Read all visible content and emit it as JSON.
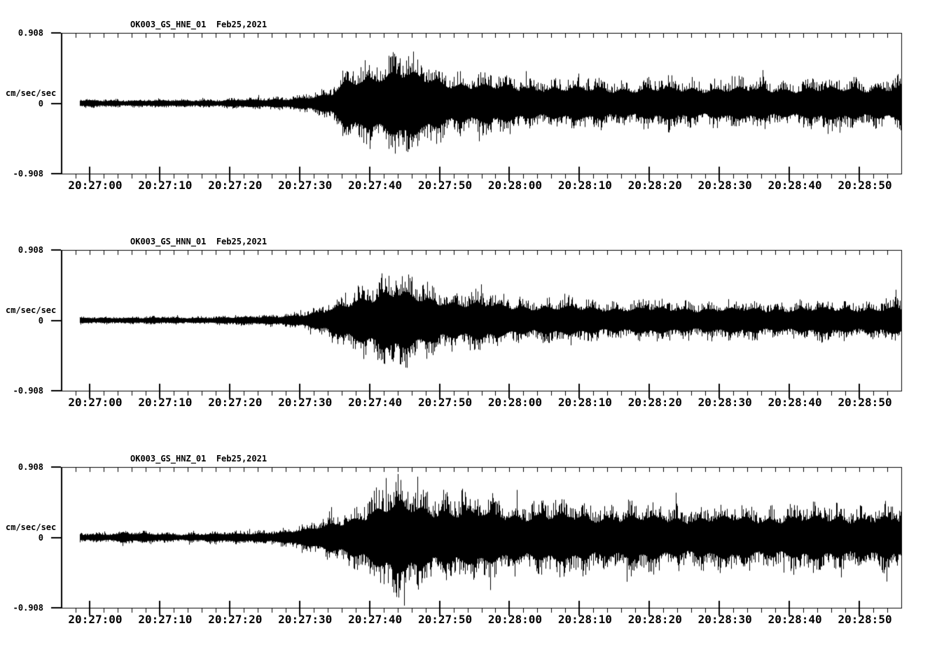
{
  "page": {
    "background": "#ffffff",
    "foreground": "#000000",
    "description": "Three-component strong-motion accelerograms, station OK003, network GS, Feb 25 2021 earthquake record"
  },
  "chart_data": {
    "type": "line",
    "subtype": "seismogram",
    "station": "OK003",
    "network": "GS",
    "date": "Feb25,2021",
    "ylabel": "cm/sec/sec",
    "ylim": [
      -0.908,
      0.908
    ],
    "y_tick_labels": [
      "0.908",
      "0",
      "-0.908"
    ],
    "y_tick_values": [
      0.908,
      0,
      -0.908
    ],
    "x_axis_start_time": "20:26:56",
    "x_span_seconds": 120,
    "x_minor_tick_interval_sec": 2,
    "x_major_tick_interval_sec": 10,
    "x_tick_seconds": [
      4,
      14,
      24,
      34,
      44,
      54,
      64,
      74,
      84,
      94,
      104,
      114
    ],
    "x_tick_labels": [
      "20:27:00",
      "20:27:10",
      "20:27:20",
      "20:27:30",
      "20:27:40",
      "20:27:50",
      "20:28:00",
      "20:28:10",
      "20:28:20",
      "20:28:30",
      "20:28:40",
      "20:28:50"
    ],
    "grid": false,
    "legend": "none",
    "panels": [
      {
        "title": "OK003_GS_HNE_01  Feb25,2021",
        "channel": "HNE",
        "seed": 11,
        "spike_prob": 0.02,
        "spike_gain": 1.25,
        "envelope_t_amp": [
          [
            1.5,
            0.06
          ],
          [
            14,
            0.06
          ],
          [
            23,
            0.065
          ],
          [
            29,
            0.08
          ],
          [
            33,
            0.11
          ],
          [
            36,
            0.15
          ],
          [
            38.5,
            0.2
          ],
          [
            40.5,
            0.5
          ],
          [
            43,
            0.6
          ],
          [
            46,
            0.68
          ],
          [
            48.5,
            0.72
          ],
          [
            51,
            0.62
          ],
          [
            54,
            0.52
          ],
          [
            57,
            0.45
          ],
          [
            61,
            0.4
          ],
          [
            66,
            0.37
          ],
          [
            72,
            0.35
          ],
          [
            80,
            0.33
          ],
          [
            90,
            0.34
          ],
          [
            100,
            0.33
          ],
          [
            110,
            0.34
          ],
          [
            120,
            0.37
          ]
        ]
      },
      {
        "title": "OK003_GS_HNN_01  Feb25,2021",
        "channel": "HNN",
        "seed": 22,
        "spike_prob": 0.025,
        "spike_gain": 1.3,
        "envelope_t_amp": [
          [
            1.5,
            0.055
          ],
          [
            18,
            0.055
          ],
          [
            27,
            0.07
          ],
          [
            32,
            0.1
          ],
          [
            35,
            0.13
          ],
          [
            38,
            0.22
          ],
          [
            40,
            0.35
          ],
          [
            42.5,
            0.52
          ],
          [
            45,
            0.6
          ],
          [
            47.5,
            0.64
          ],
          [
            50,
            0.56
          ],
          [
            53,
            0.48
          ],
          [
            56,
            0.42
          ],
          [
            60,
            0.37
          ],
          [
            65,
            0.33
          ],
          [
            71,
            0.3
          ],
          [
            78,
            0.28
          ],
          [
            86,
            0.27
          ],
          [
            95,
            0.26
          ],
          [
            104,
            0.26
          ],
          [
            112,
            0.27
          ],
          [
            120,
            0.28
          ]
        ]
      },
      {
        "title": "OK003_GS_HNZ_01  Feb25,2021",
        "channel": "HNZ",
        "seed": 33,
        "spike_prob": 0.05,
        "spike_gain": 1.3,
        "envelope_t_amp": [
          [
            1.5,
            0.065
          ],
          [
            6,
            0.07
          ],
          [
            9,
            0.095
          ],
          [
            12,
            0.075
          ],
          [
            17,
            0.065
          ],
          [
            21,
            0.08
          ],
          [
            25,
            0.08
          ],
          [
            29,
            0.1
          ],
          [
            32,
            0.13
          ],
          [
            35,
            0.18
          ],
          [
            38,
            0.28
          ],
          [
            41,
            0.42
          ],
          [
            44,
            0.58
          ],
          [
            46,
            0.68
          ],
          [
            48,
            0.75
          ],
          [
            50,
            0.72
          ],
          [
            53,
            0.66
          ],
          [
            56,
            0.6
          ],
          [
            60,
            0.55
          ],
          [
            65,
            0.52
          ],
          [
            70,
            0.5
          ],
          [
            76,
            0.48
          ],
          [
            83,
            0.46
          ],
          [
            90,
            0.44
          ],
          [
            97,
            0.45
          ],
          [
            104,
            0.44
          ],
          [
            111,
            0.46
          ],
          [
            120,
            0.42
          ]
        ]
      }
    ]
  }
}
